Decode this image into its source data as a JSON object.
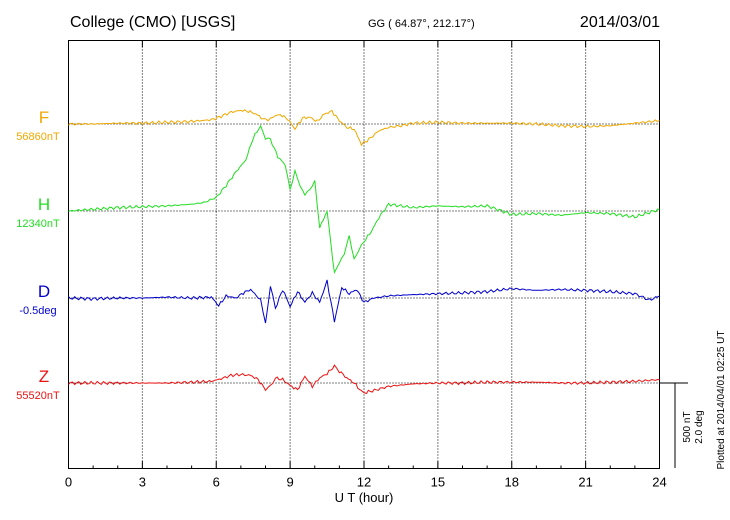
{
  "header": {
    "station": "College (CMO)  [USGS]",
    "coords": "GG ( 64.87°, 212.17°)",
    "date": "2014/03/01"
  },
  "footer": {
    "plotted": "Plotted at 2014/04/01 02:25 UT"
  },
  "chart_data": {
    "type": "line",
    "title": "College (CMO)  [USGS]",
    "xlabel": "U T (hour)",
    "xlim": [
      0,
      24
    ],
    "xticks": [
      0,
      3,
      6,
      9,
      12,
      15,
      18,
      21,
      24
    ],
    "xticklabels": [
      "0",
      "3",
      "6",
      "9",
      "12",
      "15",
      "18",
      "21",
      "24"
    ],
    "grid": "dotted vertical lines at every 3 hours, dotted baseline per component",
    "scale_bar": {
      "label_nt": "500 nT",
      "label_deg": "2.0 deg",
      "nT": 500,
      "deg": 2.0
    },
    "series": [
      {
        "name": "F",
        "baseline_label": "56860nT",
        "color": "#f0a800",
        "units": "nT",
        "x": [
          0,
          1,
          2,
          3,
          4,
          5,
          5.8,
          6.2,
          6.6,
          7,
          7.3,
          7.6,
          7.9,
          8.1,
          8.3,
          8.6,
          8.9,
          9.2,
          9.5,
          9.8,
          10.1,
          10.4,
          10.7,
          11,
          11.3,
          11.6,
          11.9,
          12.2,
          12.6,
          13,
          13.5,
          14,
          15,
          16,
          17,
          18,
          19,
          20,
          21,
          22,
          23,
          24
        ],
        "values": [
          0,
          0,
          5,
          5,
          10,
          15,
          25,
          45,
          70,
          80,
          75,
          60,
          30,
          20,
          45,
          55,
          30,
          -30,
          35,
          40,
          15,
          60,
          75,
          20,
          -20,
          -30,
          -120,
          -90,
          -40,
          -20,
          -10,
          5,
          10,
          5,
          5,
          5,
          0,
          -10,
          -15,
          -10,
          5,
          20
        ]
      },
      {
        "name": "H",
        "baseline_label": "12340nT",
        "color": "#22dd22",
        "units": "nT",
        "x": [
          0,
          1,
          2,
          3,
          4,
          5,
          5.5,
          6,
          6.4,
          6.8,
          7.2,
          7.5,
          7.8,
          8,
          8.2,
          8.5,
          8.8,
          9,
          9.2,
          9.4,
          9.6,
          9.8,
          10,
          10.2,
          10.5,
          10.8,
          11,
          11.2,
          11.4,
          11.6,
          11.8,
          12,
          12.3,
          12.6,
          13,
          13.5,
          14,
          15,
          16,
          17,
          18,
          19,
          20,
          21,
          22,
          23,
          24
        ],
        "values": [
          0,
          10,
          20,
          25,
          30,
          40,
          50,
          80,
          150,
          230,
          300,
          430,
          500,
          430,
          420,
          320,
          270,
          130,
          230,
          150,
          100,
          120,
          180,
          -100,
          0,
          -370,
          -300,
          -250,
          -150,
          -280,
          -230,
          -180,
          -120,
          -40,
          40,
          30,
          20,
          30,
          25,
          30,
          -20,
          -15,
          -25,
          -10,
          -15,
          -35,
          10
        ]
      },
      {
        "name": "D",
        "baseline_label": "-0.5deg",
        "color": "#0000cc",
        "units": "deg",
        "x": [
          0,
          1,
          2,
          3,
          4,
          5,
          5.8,
          6.1,
          6.4,
          6.8,
          7.1,
          7.4,
          7.8,
          8,
          8.2,
          8.4,
          8.7,
          9,
          9.3,
          9.6,
          9.9,
          10.2,
          10.5,
          10.8,
          11.1,
          11.4,
          11.7,
          12,
          12.4,
          13,
          14,
          15,
          16,
          17,
          18,
          18.5,
          19,
          20,
          21,
          22,
          23,
          23.6,
          24
        ],
        "values": [
          0,
          -0.02,
          0,
          0,
          0.02,
          0,
          0.02,
          -0.18,
          0.05,
          0,
          0.12,
          0.2,
          -0.05,
          -0.6,
          0.3,
          -0.25,
          0.2,
          -0.2,
          0.15,
          -0.1,
          0.12,
          -0.1,
          0.4,
          -0.55,
          0.25,
          0.1,
          0.2,
          -0.1,
          0,
          0.05,
          0.08,
          0.1,
          0.12,
          0.15,
          0.22,
          0.2,
          0.18,
          0.2,
          0.18,
          0.15,
          0.1,
          -0.05,
          0.05
        ]
      },
      {
        "name": "Z",
        "baseline_label": "55520nT",
        "color": "#ee1111",
        "units": "nT",
        "x": [
          0,
          1,
          2,
          3,
          4,
          5,
          5.8,
          6.2,
          6.6,
          7,
          7.4,
          7.7,
          8,
          8.2,
          8.4,
          8.7,
          9,
          9.3,
          9.6,
          9.9,
          10.2,
          10.5,
          10.8,
          11,
          11.3,
          11.6,
          11.9,
          12.1,
          12.5,
          13,
          14,
          15,
          16,
          17,
          18,
          19,
          20,
          21,
          22,
          23,
          24
        ],
        "values": [
          0,
          0,
          0,
          0,
          0,
          5,
          10,
          25,
          45,
          50,
          45,
          20,
          -40,
          -20,
          30,
          20,
          -15,
          -40,
          40,
          -20,
          30,
          55,
          100,
          70,
          30,
          0,
          -50,
          -55,
          -40,
          -20,
          -5,
          0,
          0,
          5,
          5,
          5,
          0,
          0,
          5,
          10,
          20
        ]
      }
    ]
  }
}
